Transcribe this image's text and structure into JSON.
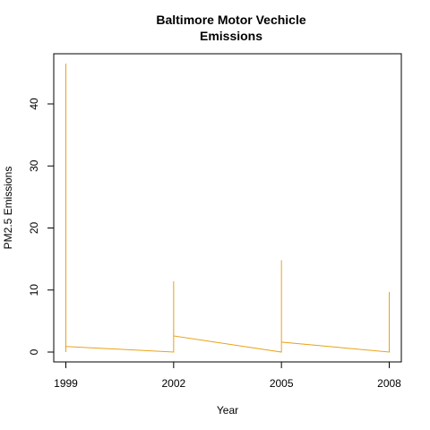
{
  "chart_data": {
    "type": "line",
    "title_lines": [
      "Baltimore Motor Vechicle",
      "Emissions"
    ],
    "xlabel": "Year",
    "ylabel": "PM2.5 Emissions",
    "xlim": [
      1999,
      2008
    ],
    "ylim": [
      0,
      46.5
    ],
    "x_ticks": [
      1999,
      2002,
      2005,
      2008
    ],
    "y_ticks": [
      0,
      10,
      20,
      30,
      40
    ],
    "grid": false,
    "legend": "none",
    "series": [
      {
        "color": "#E8A317",
        "points": [
          [
            1999,
            46.5
          ],
          [
            1999,
            0.0
          ],
          [
            1999,
            0.9
          ],
          [
            2002,
            0.0
          ],
          [
            2002,
            11.4
          ],
          [
            2002,
            2.6
          ],
          [
            2005,
            0.0
          ],
          [
            2005,
            14.8
          ],
          [
            2005,
            1.6
          ],
          [
            2008,
            0.0
          ],
          [
            2008,
            9.7
          ]
        ]
      }
    ]
  }
}
